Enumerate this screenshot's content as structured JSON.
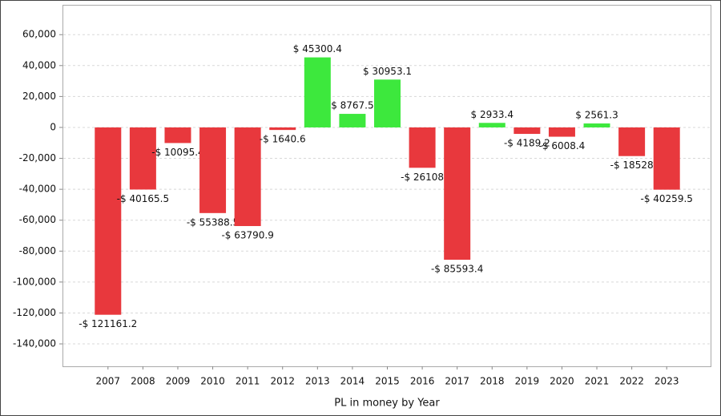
{
  "chart_data": {
    "type": "bar",
    "x_label": "PL in money by Year",
    "categories": [
      "2007",
      "2008",
      "2009",
      "2010",
      "2011",
      "2012",
      "2013",
      "2014",
      "2015",
      "2016",
      "2017",
      "2018",
      "2019",
      "2020",
      "2021",
      "2022",
      "2023"
    ],
    "values": [
      -121161.2,
      -40165.5,
      -10095.4,
      -55388.5,
      -63790.9,
      -1640.6,
      45300.4,
      8767.5,
      30953.1,
      -26108,
      -85593.4,
      2933.4,
      -4189.2,
      -6008.4,
      2561.3,
      -18528,
      -40259.5
    ],
    "value_labels": [
      "-$ 121161.2",
      "-$ 40165.5",
      "-$ 10095.4",
      "-$ 55388.5",
      "-$ 63790.9",
      "-$ 1640.6",
      "$ 45300.4",
      "$ 8767.5",
      "$ 30953.1",
      "-$ 26108",
      "-$ 85593.4",
      "$ 2933.4",
      "-$ 4189.2",
      "-$ 6008.4",
      "$ 2561.3",
      "-$ 18528",
      "-$ 40259.5"
    ],
    "positive_color": "#3de83d",
    "negative_color": "#e8383d",
    "ylim": [
      -154500,
      79300
    ],
    "yticks": [
      {
        "value": -140000,
        "label": "-140,000"
      },
      {
        "value": -120000,
        "label": "-120,000"
      },
      {
        "value": -100000,
        "label": "-100,000"
      },
      {
        "value": -80000,
        "label": "-80,000"
      },
      {
        "value": -60000,
        "label": "-60,000"
      },
      {
        "value": -40000,
        "label": "-40,000"
      },
      {
        "value": -20000,
        "label": "-20,000"
      },
      0,
      {
        "value": 20000,
        "label": "20,000"
      },
      {
        "value": 40000,
        "label": "40,000"
      },
      {
        "value": 60000,
        "label": "60,000"
      }
    ],
    "grid": true
  }
}
